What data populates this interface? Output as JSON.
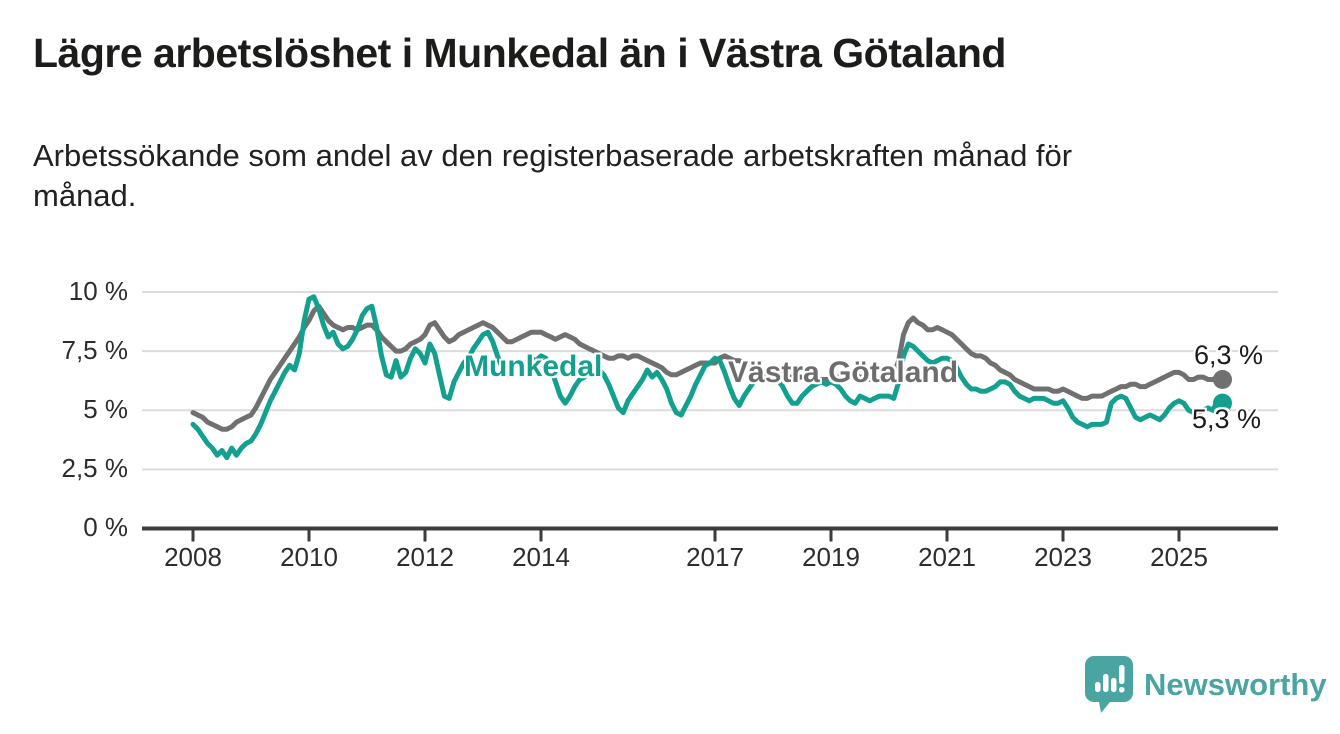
{
  "header": {
    "title": "Lägre arbetslöshet i Munkedal än i Västra Götaland",
    "subtitle": "Arbetssökande som andel av den registerbaserade arbetskraften månad för\nmånad."
  },
  "chart_data": {
    "type": "line",
    "unit": "%",
    "decimal_separator": ",",
    "x_start": {
      "year": 2008,
      "month": 1
    },
    "points_per_year": 12,
    "ylim": [
      0,
      10.5
    ],
    "grid": "horizontal",
    "y_ticks": [
      0,
      2.5,
      5,
      7.5,
      10
    ],
    "y_tick_labels": [
      "0 %",
      "2,5 %",
      "5 %",
      "7,5 %",
      "10 %"
    ],
    "x_ticks": [
      2008,
      2010,
      2012,
      2014,
      2017,
      2019,
      2021,
      2023,
      2025
    ],
    "x_tick_labels": [
      "2008",
      "2010",
      "2012",
      "2014",
      "2017",
      "2019",
      "2021",
      "2023",
      "2025"
    ],
    "series": [
      {
        "name": "Västra Götaland",
        "color": "#707070",
        "end_value": 6.3,
        "end_label": "6,3 %",
        "values": [
          4.9,
          4.8,
          4.7,
          4.5,
          4.4,
          4.3,
          4.2,
          4.2,
          4.3,
          4.5,
          4.6,
          4.7,
          4.8,
          5.1,
          5.5,
          5.9,
          6.3,
          6.6,
          6.9,
          7.2,
          7.5,
          7.8,
          8.1,
          8.5,
          8.8,
          9.2,
          9.4,
          9.1,
          8.8,
          8.6,
          8.5,
          8.4,
          8.5,
          8.5,
          8.4,
          8.5,
          8.6,
          8.6,
          8.4,
          8.1,
          7.9,
          7.7,
          7.5,
          7.5,
          7.6,
          7.8,
          7.9,
          8.0,
          8.2,
          8.6,
          8.7,
          8.4,
          8.1,
          7.9,
          8.0,
          8.2,
          8.3,
          8.4,
          8.5,
          8.6,
          8.7,
          8.6,
          8.5,
          8.3,
          8.1,
          7.9,
          7.9,
          8.0,
          8.1,
          8.2,
          8.3,
          8.3,
          8.3,
          8.2,
          8.1,
          8.0,
          8.1,
          8.2,
          8.1,
          8.0,
          7.8,
          7.7,
          7.6,
          7.5,
          7.4,
          7.3,
          7.2,
          7.2,
          7.3,
          7.3,
          7.2,
          7.3,
          7.3,
          7.2,
          7.1,
          7.0,
          6.9,
          6.8,
          6.6,
          6.5,
          6.5,
          6.6,
          6.7,
          6.8,
          6.9,
          7.0,
          7.0,
          7.0,
          7.0,
          7.2,
          7.3,
          7.2,
          7.1,
          7.1,
          7.0,
          6.9,
          6.9,
          6.8,
          6.7,
          6.6,
          6.6,
          6.5,
          6.5,
          6.4,
          6.4,
          6.4,
          6.4,
          6.4,
          6.3,
          6.3,
          6.3,
          6.3,
          6.3,
          6.4,
          6.4,
          6.4,
          6.5,
          6.5,
          6.4,
          6.4,
          6.3,
          6.3,
          6.3,
          6.3,
          6.4,
          6.5,
          7.1,
          8.2,
          8.7,
          8.9,
          8.7,
          8.6,
          8.4,
          8.4,
          8.5,
          8.4,
          8.3,
          8.2,
          8.0,
          7.8,
          7.6,
          7.4,
          7.3,
          7.3,
          7.2,
          7.0,
          6.9,
          6.7,
          6.6,
          6.5,
          6.3,
          6.2,
          6.1,
          6.0,
          5.9,
          5.9,
          5.9,
          5.9,
          5.8,
          5.8,
          5.9,
          5.8,
          5.7,
          5.6,
          5.5,
          5.5,
          5.6,
          5.6,
          5.6,
          5.7,
          5.8,
          5.9,
          6.0,
          6.0,
          6.1,
          6.1,
          6.0,
          6.0,
          6.1,
          6.2,
          6.3,
          6.4,
          6.5,
          6.6,
          6.6,
          6.5,
          6.3,
          6.3,
          6.4,
          6.4,
          6.3,
          6.3,
          6.4,
          6.3
        ]
      },
      {
        "name": "Munkedal",
        "color": "#13a08f",
        "end_value": 5.3,
        "end_label": "5,3 %",
        "values": [
          4.4,
          4.2,
          3.9,
          3.6,
          3.4,
          3.1,
          3.3,
          3.0,
          3.4,
          3.1,
          3.4,
          3.6,
          3.7,
          4.0,
          4.4,
          4.9,
          5.4,
          5.8,
          6.2,
          6.6,
          6.9,
          6.7,
          7.4,
          8.8,
          9.7,
          9.8,
          9.3,
          8.6,
          8.1,
          8.3,
          7.8,
          7.6,
          7.7,
          8.0,
          8.4,
          9.0,
          9.3,
          9.4,
          8.5,
          7.3,
          6.5,
          6.4,
          7.1,
          6.4,
          6.6,
          7.2,
          7.6,
          7.4,
          7.0,
          7.8,
          7.4,
          6.5,
          5.6,
          5.5,
          6.2,
          6.6,
          7.0,
          7.2,
          7.6,
          7.9,
          8.2,
          8.3,
          7.9,
          7.3,
          6.8,
          6.5,
          6.9,
          7.1,
          6.9,
          7.0,
          7.2,
          7.1,
          7.3,
          7.2,
          6.8,
          6.2,
          5.6,
          5.3,
          5.6,
          6.0,
          6.3,
          6.4,
          6.6,
          6.6,
          6.7,
          6.5,
          6.1,
          5.6,
          5.1,
          4.9,
          5.4,
          5.7,
          6.0,
          6.3,
          6.7,
          6.4,
          6.6,
          6.3,
          5.9,
          5.3,
          4.9,
          4.8,
          5.2,
          5.6,
          6.1,
          6.5,
          6.9,
          7.0,
          7.2,
          7.1,
          6.6,
          6.0,
          5.5,
          5.2,
          5.6,
          5.9,
          6.2,
          6.4,
          6.5,
          6.3,
          6.4,
          6.3,
          6.0,
          5.6,
          5.3,
          5.3,
          5.6,
          5.8,
          6.0,
          6.1,
          6.2,
          6.1,
          6.2,
          6.1,
          5.9,
          5.6,
          5.4,
          5.3,
          5.6,
          5.5,
          5.4,
          5.5,
          5.6,
          5.6,
          5.6,
          5.5,
          6.2,
          7.3,
          7.8,
          7.7,
          7.5,
          7.3,
          7.1,
          7.0,
          7.1,
          7.2,
          7.2,
          7.1,
          6.8,
          6.4,
          6.1,
          5.9,
          5.9,
          5.8,
          5.8,
          5.9,
          6.0,
          6.2,
          6.2,
          6.1,
          5.8,
          5.6,
          5.5,
          5.4,
          5.5,
          5.5,
          5.5,
          5.4,
          5.3,
          5.3,
          5.4,
          5.1,
          4.7,
          4.5,
          4.4,
          4.3,
          4.4,
          4.4,
          4.4,
          4.5,
          5.3,
          5.5,
          5.6,
          5.5,
          5.1,
          4.7,
          4.6,
          4.7,
          4.8,
          4.7,
          4.6,
          4.8,
          5.1,
          5.3,
          5.4,
          5.3,
          5.0,
          4.9,
          4.9,
          5.0,
          5.1,
          5.0,
          5.4,
          5.3
        ]
      }
    ]
  },
  "branding": {
    "logo_text": "Newsworthy",
    "logo_color": "#4aa5a2",
    "logo_icon": "bar-chart-speech-bubble"
  }
}
